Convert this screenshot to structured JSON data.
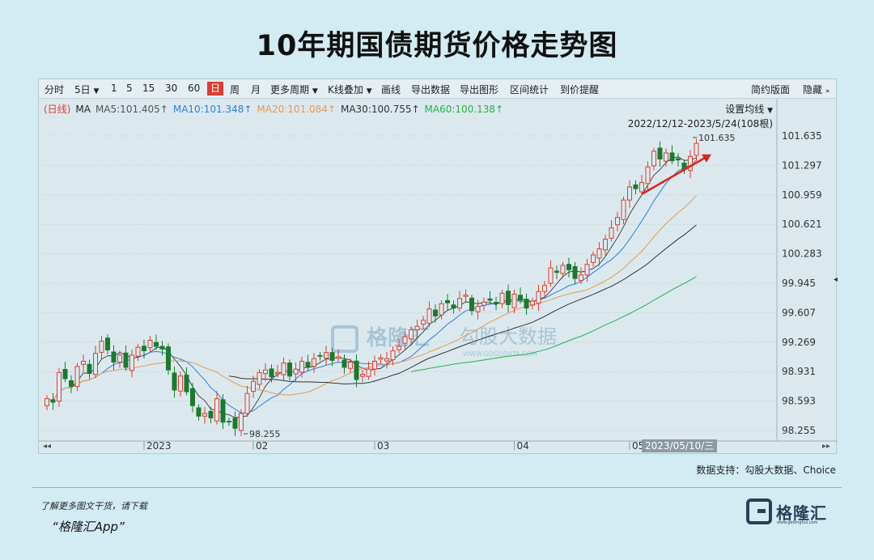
{
  "title": "10年期国债期货价格走势图",
  "toolbar": {
    "items": [
      "分时",
      "5日",
      "1",
      "5",
      "15",
      "30",
      "60",
      "日",
      "周",
      "月",
      "更多周期",
      "K线叠加",
      "画线",
      "导出数据",
      "导出图形",
      "区间统计",
      "到价提醒"
    ],
    "active": "日",
    "right": [
      "简约版面",
      "隐藏"
    ]
  },
  "ma_legend": {
    "label": "(日线)",
    "ma": "MA",
    "ma5": "MA5:101.405↑",
    "ma10": "MA10:101.348↑",
    "ma20": "MA20:101.084↑",
    "ma30": "MA30:100.755↑",
    "ma60": "MA60:100.138↑"
  },
  "settings_label": "设置均线",
  "date_range": "2022/12/12-2023/5/24(108根)",
  "watermark": {
    "left": "格隆汇",
    "right": "勾股大数据",
    "url": "WWW.GOGUDATA.COM"
  },
  "chart_data": {
    "type": "candlestick",
    "y_ticks": [
      "101.635",
      "101.297",
      "100.959",
      "100.621",
      "100.283",
      "99.945",
      "99.607",
      "99.269",
      "98.931",
      "98.593",
      "98.255"
    ],
    "ylim": [
      98.255,
      101.635
    ],
    "x_ticks": [
      {
        "label": "2023",
        "index": 16
      },
      {
        "label": "02",
        "index": 34
      },
      {
        "label": "03",
        "index": 54
      },
      {
        "label": "04",
        "index": 77
      },
      {
        "label": "05",
        "index": 96
      }
    ],
    "cursor_label": "2023/05/10/三",
    "annotations": [
      {
        "text": "98.255",
        "index": 32
      },
      {
        "text": "101.635",
        "index": 106
      }
    ],
    "colors": {
      "up": "#e03c2e",
      "down": "#1a7a2e",
      "ma5": "#222222",
      "ma10": "#2f7fdc",
      "ma20": "#e69a4d",
      "ma30": "#333333",
      "ma60": "#26b04a",
      "arrow": "#e0241b"
    },
    "closes": [
      98.62,
      98.58,
      98.92,
      98.85,
      98.76,
      98.99,
      99.05,
      98.91,
      99.14,
      99.28,
      99.18,
      99.04,
      99.12,
      98.98,
      99.12,
      99.21,
      99.17,
      99.29,
      99.22,
      99.19,
      98.95,
      98.72,
      98.88,
      98.7,
      98.54,
      98.42,
      98.45,
      98.4,
      98.62,
      98.35,
      98.36,
      98.28,
      98.45,
      98.68,
      98.82,
      98.92,
      98.95,
      98.87,
      98.92,
      99.03,
      98.88,
      98.96,
      99.05,
      98.98,
      99.08,
      99.11,
      99.15,
      99.06,
      99.1,
      98.98,
      99.04,
      98.84,
      98.9,
      98.96,
      99.05,
      99.09,
      99.08,
      99.17,
      99.22,
      99.33,
      99.41,
      99.45,
      99.52,
      99.65,
      99.57,
      99.71,
      99.72,
      99.66,
      99.77,
      99.81,
      99.63,
      99.68,
      99.73,
      99.75,
      99.71,
      99.83,
      99.7,
      99.82,
      99.75,
      99.66,
      99.74,
      99.85,
      99.92,
      100.12,
      100.07,
      100.15,
      100.1,
      100.0,
      100.04,
      100.16,
      100.27,
      100.34,
      100.45,
      100.58,
      100.7,
      100.9,
      101.05,
      101.03,
      101.1,
      101.28,
      101.46,
      101.37,
      101.44,
      101.35,
      101.36,
      101.25,
      101.4,
      101.55
    ]
  }
}
